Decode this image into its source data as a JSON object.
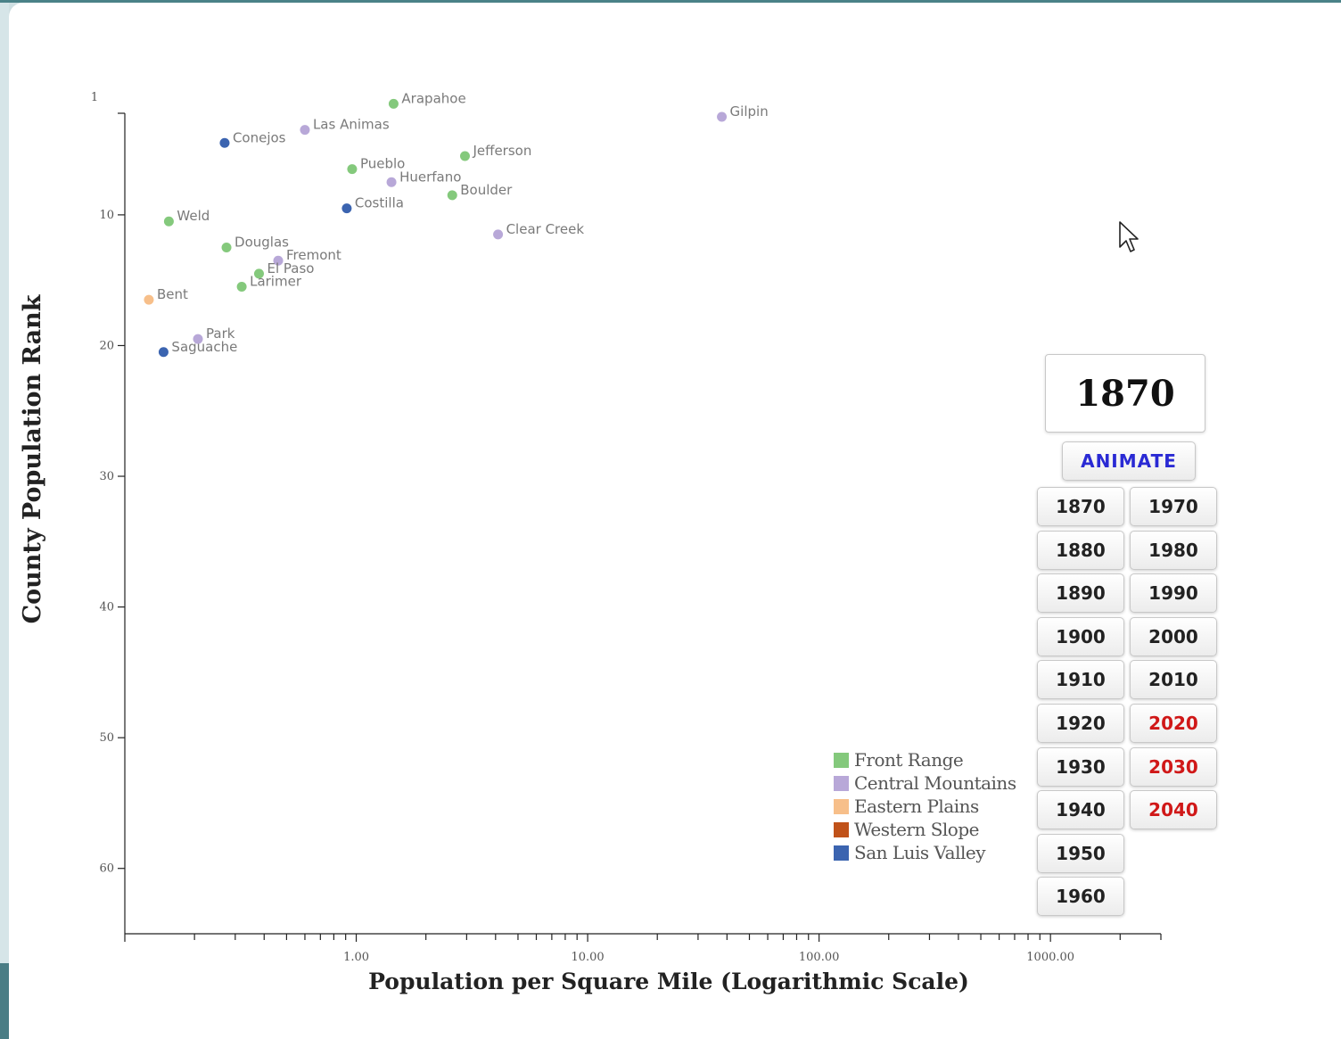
{
  "chart_data": {
    "type": "scatter",
    "xlabel": "Population per Square Mile (Logarithmic Scale)",
    "ylabel": "County Population Rank",
    "x_scale": "log",
    "xlim": [
      0.1,
      3000
    ],
    "ylim": [
      1,
      65
    ],
    "x_tick_labels": [
      "1.00",
      "10.00",
      "100.00",
      "1000.00"
    ],
    "x_tick_values": [
      1,
      10,
      100,
      1000
    ],
    "y_ticks": [
      1,
      10,
      20,
      30,
      40,
      50,
      60
    ],
    "grid": false,
    "legend_placement": "bottom-right",
    "series": [
      {
        "name": "Front Range",
        "color": "#84c97c"
      },
      {
        "name": "Central Mountains",
        "color": "#b8a8d8"
      },
      {
        "name": "Eastern Plains",
        "color": "#f7bf8a"
      },
      {
        "name": "Western Slope",
        "color": "#c0521a"
      },
      {
        "name": "San Luis Valley",
        "color": "#3b64b0"
      }
    ],
    "points": [
      {
        "label": "Arapahoe",
        "region": "Front Range",
        "x": 1.45,
        "y": 1.5
      },
      {
        "label": "Gilpin",
        "region": "Central Mountains",
        "x": 38,
        "y": 2.5
      },
      {
        "label": "Las Animas",
        "region": "Central Mountains",
        "x": 0.6,
        "y": 3.5
      },
      {
        "label": "Conejos",
        "region": "San Luis Valley",
        "x": 0.27,
        "y": 4.5
      },
      {
        "label": "Jefferson",
        "region": "Front Range",
        "x": 2.95,
        "y": 5.5
      },
      {
        "label": "Pueblo",
        "region": "Front Range",
        "x": 0.96,
        "y": 6.5
      },
      {
        "label": "Huerfano",
        "region": "Central Mountains",
        "x": 1.42,
        "y": 7.5
      },
      {
        "label": "Boulder",
        "region": "Front Range",
        "x": 2.6,
        "y": 8.5
      },
      {
        "label": "Costilla",
        "region": "San Luis Valley",
        "x": 0.91,
        "y": 9.5
      },
      {
        "label": "Weld",
        "region": "Front Range",
        "x": 0.155,
        "y": 10.5
      },
      {
        "label": "Clear Creek",
        "region": "Central Mountains",
        "x": 4.1,
        "y": 11.5
      },
      {
        "label": "Douglas",
        "region": "Front Range",
        "x": 0.275,
        "y": 12.5
      },
      {
        "label": "Fremont",
        "region": "Central Mountains",
        "x": 0.46,
        "y": 13.5
      },
      {
        "label": "El Paso",
        "region": "Front Range",
        "x": 0.38,
        "y": 14.5
      },
      {
        "label": "Larimer",
        "region": "Front Range",
        "x": 0.32,
        "y": 15.5
      },
      {
        "label": "Bent",
        "region": "Eastern Plains",
        "x": 0.127,
        "y": 16.5
      },
      {
        "label": "Park",
        "region": "Central Mountains",
        "x": 0.207,
        "y": 19.5
      },
      {
        "label": "Saguache",
        "region": "San Luis Valley",
        "x": 0.147,
        "y": 20.5
      }
    ]
  },
  "year_display": "1870",
  "animate_label": "ANIMATE",
  "year_buttons": {
    "left": [
      "1870",
      "1880",
      "1890",
      "1900",
      "1910",
      "1920",
      "1930",
      "1940",
      "1950",
      "1960"
    ],
    "right": [
      "1970",
      "1980",
      "1990",
      "2000",
      "2010",
      "2020",
      "2030",
      "2040"
    ],
    "future_color": "#d01818"
  }
}
